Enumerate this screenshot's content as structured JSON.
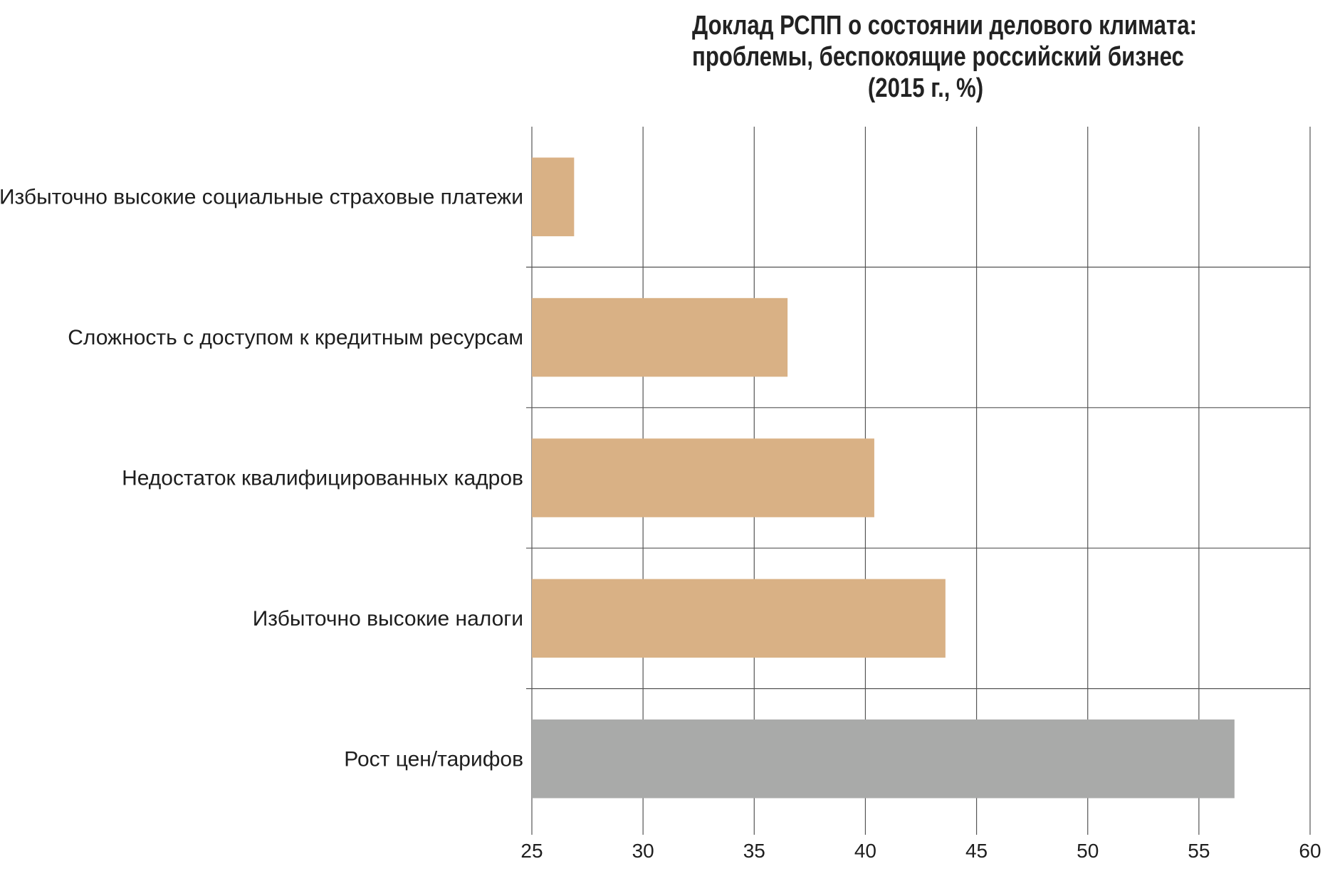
{
  "chart_data": {
    "type": "bar",
    "orientation": "horizontal",
    "title_lines": [
      "Доклад РСПП о состоянии делового климата:",
      "проблемы, беспокоящие российский бизнес",
      "(2015 г., %)"
    ],
    "categories": [
      "Избыточно высокие социальные страховые платежи",
      "Сложность с доступом к кредитным ресурсам",
      "Недостаток квалифицированных кадров",
      "Избыточно высокие налоги",
      "Рост цен/тарифов"
    ],
    "values": [
      26.9,
      36.5,
      40.4,
      43.6,
      56.6
    ],
    "bar_colors": [
      "#d9b185",
      "#d9b185",
      "#d9b185",
      "#d9b185",
      "#a9aaa9"
    ],
    "xlim": [
      25,
      60
    ],
    "xticks": [
      25,
      30,
      35,
      40,
      45,
      50,
      55,
      60
    ],
    "grid": true
  }
}
